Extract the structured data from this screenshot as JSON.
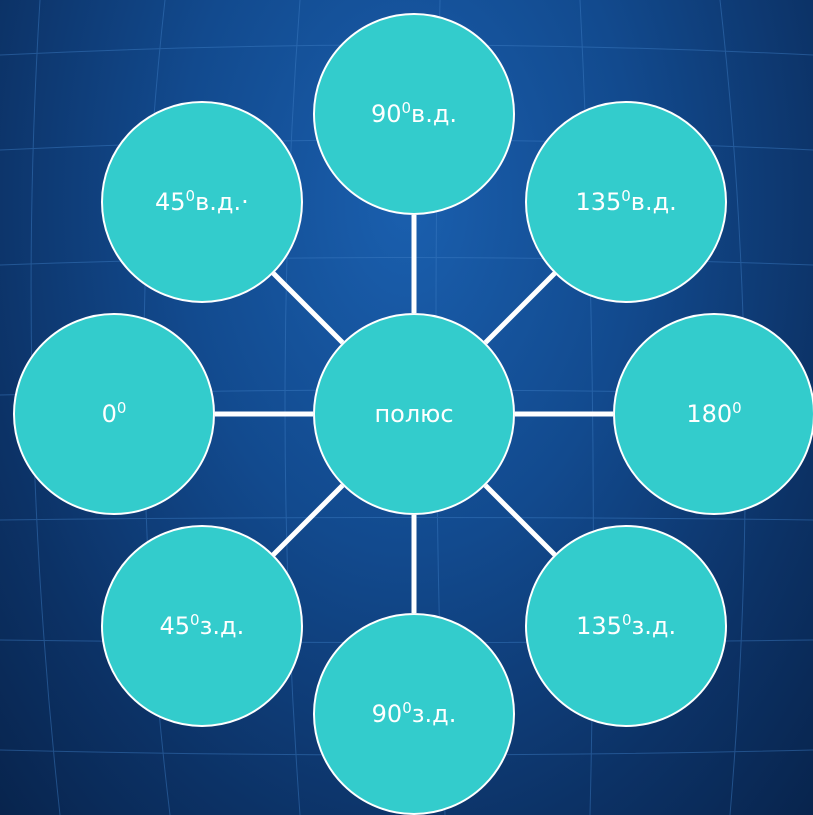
{
  "colors": {
    "node_fill": "#33cccc",
    "node_border": "#ffffff",
    "connector": "#ffffff",
    "text": "#ffffff",
    "background": "#124a8e"
  },
  "diagram": {
    "center": {
      "label": "полюс"
    },
    "nodes": [
      {
        "id": "90e",
        "base": "90",
        "sup": "0",
        "suffix": "в.д."
      },
      {
        "id": "135e",
        "base": "135",
        "sup": "0",
        "suffix": "в.д."
      },
      {
        "id": "180",
        "base": "180",
        "sup": "0",
        "suffix": ""
      },
      {
        "id": "135w",
        "base": "135",
        "sup": "0",
        "suffix": "з.д."
      },
      {
        "id": "90w",
        "base": "90",
        "sup": "0",
        "suffix": "з.д."
      },
      {
        "id": "45w",
        "base": "45",
        "sup": "0",
        "suffix": "з.д."
      },
      {
        "id": "0",
        "base": "0",
        "sup": "0",
        "suffix": ""
      },
      {
        "id": "45e",
        "base": "45",
        "sup": "0",
        "suffix": "в.д.·"
      }
    ]
  }
}
